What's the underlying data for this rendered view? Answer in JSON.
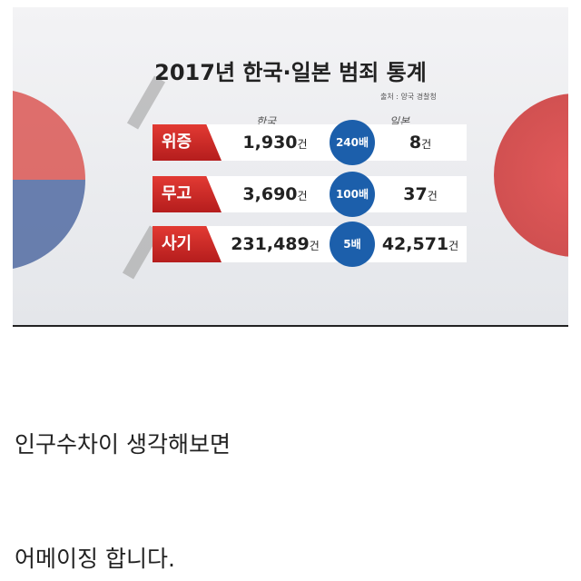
{
  "infographic": {
    "title": "2017년 한국·일본 범죄 통계",
    "source": "출처 : 양국 경찰청",
    "col_korea": "한국",
    "col_japan": "일본",
    "unit": "건",
    "rows": [
      {
        "label": "위증",
        "korea": "1,930",
        "ratio": "240배",
        "japan": "8"
      },
      {
        "label": "무고",
        "korea": "3,690",
        "ratio": "100배",
        "japan": "37"
      },
      {
        "label": "사기",
        "korea": "231,489",
        "ratio": "5배",
        "japan": "42,571"
      }
    ],
    "colors": {
      "label_red": "#d22b27",
      "badge_blue": "#1c5fab"
    }
  },
  "body": {
    "line1": "인구수차이 생각해보면",
    "line2": "어메이징 합니다."
  }
}
